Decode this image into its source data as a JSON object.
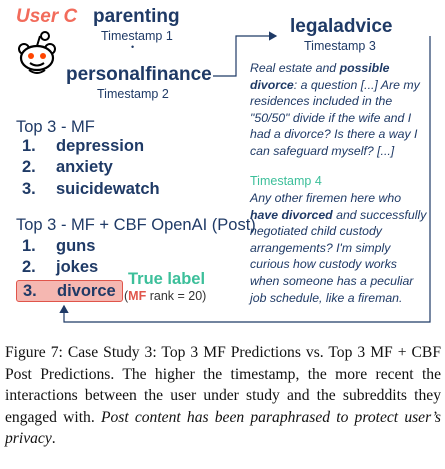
{
  "figure": {
    "user_label": "User C",
    "timeline": [
      {
        "subreddit": "parenting",
        "timestamp": "Timestamp 1"
      },
      {
        "subreddit": "personalfinance",
        "timestamp": "Timestamp 2"
      },
      {
        "subreddit": "legaladvice",
        "timestamp": "Timestamp 3"
      }
    ],
    "separator_dot": "•",
    "top3_mf": {
      "title": "Top 3 - MF",
      "items": [
        {
          "rank": "1.",
          "name": "depression"
        },
        {
          "rank": "2.",
          "name": "anxiety"
        },
        {
          "rank": "3.",
          "name": "suicidewatch"
        }
      ]
    },
    "top3_cbf": {
      "title": "Top 3 - MF + CBF OpenAI (Post)",
      "items": [
        {
          "rank": "1.",
          "name": "guns"
        },
        {
          "rank": "2.",
          "name": "jokes"
        },
        {
          "rank": "3.",
          "name": "divorce"
        }
      ]
    },
    "true_label": {
      "text": "True label",
      "note_prefix": "(",
      "note_mf": "MF",
      "note_rest": " rank = 20)"
    },
    "post3": {
      "lines": [
        [
          "Real estate and ",
          "possible"
        ],
        [
          "divorce",
          ": a question [...] Are my"
        ],
        [
          "residences included in the"
        ],
        [
          "\"50/50\" divide if the wife and I"
        ],
        [
          "had a divorce? Is there a way I"
        ],
        [
          "can safeguard myself? [...]"
        ]
      ]
    },
    "timestamp4": "Timestamp 4",
    "post4": {
      "lines": [
        [
          "Any other firemen here who"
        ],
        [
          "have divorced",
          " and successfully"
        ],
        [
          "negotiated child custody"
        ],
        [
          "arrangements? I'm simply"
        ],
        [
          "curious how custody works"
        ],
        [
          "when someone has a peculiar"
        ],
        [
          "job schedule, like a fireman."
        ]
      ]
    },
    "colors": {
      "navy": "#1f3a66",
      "coral": "#f26b5b",
      "teal": "#3cbf9a",
      "highlight_fill": "#f5b7b1",
      "highlight_border": "#e0554b",
      "reddit_logo": "reddit-alien-logo"
    }
  },
  "caption": {
    "text_regular": "Figure 7: Case Study 3: Top 3 MF Predictions vs. Top 3 MF + CBF Post Predictions. The higher the timestamp, the more recent the interactions between the user under study and the subreddits they engaged with. ",
    "text_italic": "Post content has been paraphrased to protect user’s privacy",
    "text_end": "."
  }
}
